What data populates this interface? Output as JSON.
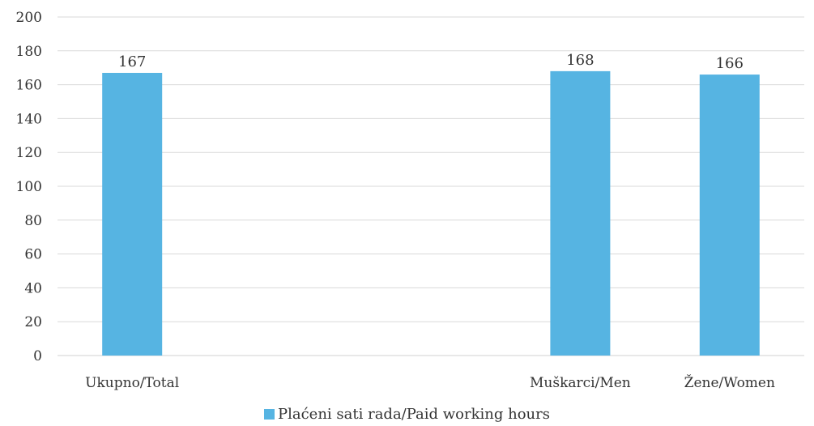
{
  "chart_data": {
    "type": "bar",
    "categories": [
      "Ukupno/Total",
      "",
      "",
      "Muškarci/Men",
      "Žene/Women"
    ],
    "series": [
      {
        "name": "Plaćeni sati rada/Paid working hours",
        "values": [
          167,
          null,
          null,
          168,
          166
        ],
        "color": "#56B4E2"
      }
    ],
    "title": "",
    "xlabel": "",
    "ylabel": "",
    "ylim": [
      0,
      200
    ],
    "yticks": [
      0,
      20,
      40,
      60,
      80,
      100,
      120,
      140,
      160,
      180,
      200
    ],
    "grid": true,
    "legend_position": "bottom",
    "data_labels": true
  }
}
